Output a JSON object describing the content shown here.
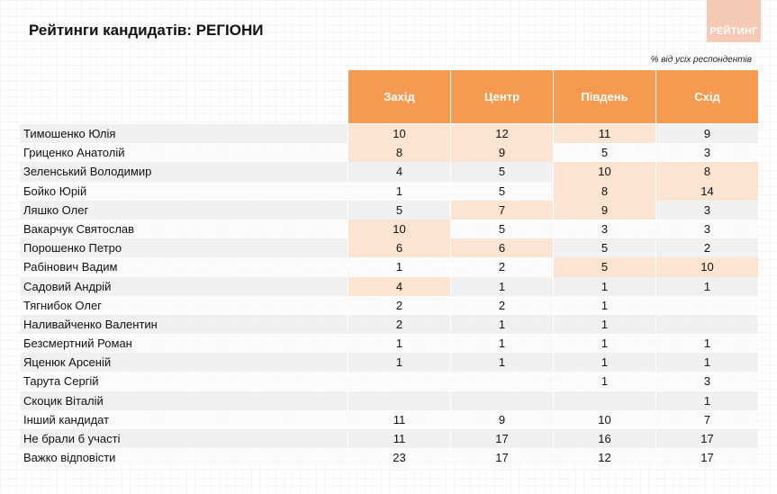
{
  "title": "Рейтинги кандидатів: РЕГІОНИ",
  "logo_text": "РЕЙТИНГ",
  "note": "% від усіх респондентів",
  "colors": {
    "header": "#f59a4f",
    "highlight": "#fce4d3",
    "logo": "#f6c9b5"
  },
  "chart_data": {
    "type": "table",
    "columns": [
      "Захід",
      "Центр",
      "Південь",
      "Схід"
    ],
    "rows": [
      {
        "name": "Тимошенко Юлія",
        "values": [
          "10",
          "12",
          "11",
          "9"
        ],
        "highlight": [
          true,
          true,
          true,
          false
        ]
      },
      {
        "name": "Гриценко Анатолій",
        "values": [
          "8",
          "9",
          "5",
          "3"
        ],
        "highlight": [
          true,
          true,
          false,
          false
        ]
      },
      {
        "name": "Зеленський Володимир",
        "values": [
          "4",
          "5",
          "10",
          "8"
        ],
        "highlight": [
          false,
          false,
          true,
          true
        ]
      },
      {
        "name": "Бойко Юрій",
        "values": [
          "1",
          "5",
          "8",
          "14"
        ],
        "highlight": [
          false,
          false,
          true,
          true
        ]
      },
      {
        "name": "Ляшко Олег",
        "values": [
          "5",
          "7",
          "9",
          "3"
        ],
        "highlight": [
          false,
          true,
          true,
          false
        ]
      },
      {
        "name": "Вакарчук Святослав",
        "values": [
          "10",
          "5",
          "3",
          "3"
        ],
        "highlight": [
          true,
          false,
          false,
          false
        ]
      },
      {
        "name": "Порошенко Петро",
        "values": [
          "6",
          "6",
          "5",
          "2"
        ],
        "highlight": [
          true,
          true,
          false,
          false
        ]
      },
      {
        "name": "Рабінович Вадим",
        "values": [
          "1",
          "2",
          "5",
          "10"
        ],
        "highlight": [
          false,
          false,
          true,
          true
        ]
      },
      {
        "name": "Садовий Андрій",
        "values": [
          "4",
          "1",
          "1",
          "1"
        ],
        "highlight": [
          true,
          false,
          false,
          false
        ]
      },
      {
        "name": "Тягнибок Олег",
        "values": [
          "2",
          "2",
          "1",
          ""
        ],
        "highlight": [
          false,
          false,
          false,
          false
        ]
      },
      {
        "name": "Наливайченко Валентин",
        "values": [
          "2",
          "1",
          "1",
          ""
        ],
        "highlight": [
          false,
          false,
          false,
          false
        ]
      },
      {
        "name": "Безсмертний Роман",
        "values": [
          "1",
          "1",
          "1",
          "1"
        ],
        "highlight": [
          false,
          false,
          false,
          false
        ]
      },
      {
        "name": "Яценюк Арсеній",
        "values": [
          "1",
          "1",
          "1",
          "1"
        ],
        "highlight": [
          false,
          false,
          false,
          false
        ]
      },
      {
        "name": "Тарута Сергій",
        "values": [
          "",
          "",
          "1",
          "3"
        ],
        "highlight": [
          false,
          false,
          false,
          false
        ]
      },
      {
        "name": "Скоцик Віталій",
        "values": [
          "",
          "",
          "",
          "1"
        ],
        "highlight": [
          false,
          false,
          false,
          false
        ]
      },
      {
        "name": "Інший кандидат",
        "values": [
          "11",
          "9",
          "10",
          "7"
        ],
        "highlight": [
          false,
          false,
          false,
          false
        ]
      },
      {
        "name": "Не брали б участі",
        "values": [
          "11",
          "17",
          "16",
          "17"
        ],
        "highlight": [
          false,
          false,
          false,
          false
        ]
      },
      {
        "name": "Важко відповісти",
        "values": [
          "23",
          "17",
          "12",
          "17"
        ],
        "highlight": [
          false,
          false,
          false,
          false
        ]
      }
    ]
  }
}
